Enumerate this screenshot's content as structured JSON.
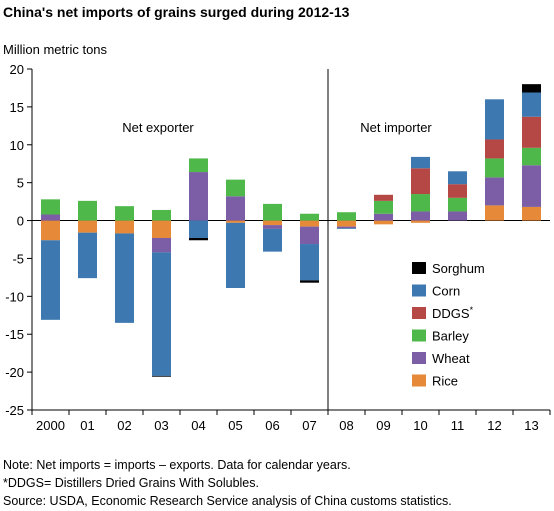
{
  "chart_data": {
    "type": "bar",
    "stacked": true,
    "title": "China's net imports of grains surged during 2012-13",
    "ylabel": "Million metric tons",
    "ylim": [
      -25,
      20
    ],
    "yticks": [
      20,
      15,
      10,
      5,
      0,
      -5,
      -10,
      -15,
      -20,
      -25
    ],
    "categories": [
      "2000",
      "01",
      "02",
      "03",
      "04",
      "05",
      "06",
      "07",
      "08",
      "09",
      "10",
      "11",
      "12",
      "13"
    ],
    "annotations": [
      "Net exporter",
      "Net importer"
    ],
    "legend_position": "lower-right",
    "series": [
      {
        "name": "Rice",
        "color": "#e68a3a",
        "values": [
          -2.6,
          -1.6,
          -1.7,
          -2.3,
          0.0,
          -0.3,
          -0.6,
          -0.8,
          -0.8,
          -0.5,
          -0.3,
          0.0,
          2.0,
          1.8
        ]
      },
      {
        "name": "Wheat",
        "color": "#7c5ea6",
        "values": [
          0.8,
          0.0,
          0.0,
          -1.9,
          6.4,
          3.2,
          -0.5,
          -2.3,
          -0.2,
          0.9,
          1.2,
          1.2,
          3.7,
          5.5
        ]
      },
      {
        "name": "Barley",
        "color": "#4fb84a",
        "values": [
          2.0,
          2.6,
          1.9,
          1.4,
          1.8,
          2.2,
          2.2,
          0.9,
          1.1,
          1.7,
          2.3,
          1.8,
          2.5,
          2.3
        ]
      },
      {
        "name": "DDGS*",
        "color": "#b54745",
        "values": [
          0.0,
          0.0,
          0.0,
          0.0,
          0.0,
          0.0,
          0.0,
          0.0,
          0.0,
          0.8,
          3.4,
          1.8,
          2.5,
          4.1
        ]
      },
      {
        "name": "Corn",
        "color": "#3d78b0",
        "values": [
          -10.5,
          -6.0,
          -11.8,
          -16.3,
          -2.3,
          -8.6,
          -3.0,
          -4.8,
          -0.1,
          0.0,
          1.5,
          1.7,
          5.3,
          3.2
        ]
      },
      {
        "name": "Sorghum",
        "color": "#000000",
        "values": [
          0.0,
          0.0,
          0.0,
          -0.1,
          -0.3,
          0.0,
          0.0,
          -0.3,
          0.0,
          0.0,
          0.0,
          0.0,
          0.0,
          1.1
        ]
      }
    ],
    "legend_order": [
      "Sorghum",
      "Corn",
      "DDGS*",
      "Barley",
      "Wheat",
      "Rice"
    ],
    "notes": [
      "Note: Net imports = imports – exports. Data for calendar years.",
      "*DDGS= Distillers Dried Grains With Solubles.",
      "Source: USDA, Economic Research Service analysis of China customs statistics."
    ]
  }
}
